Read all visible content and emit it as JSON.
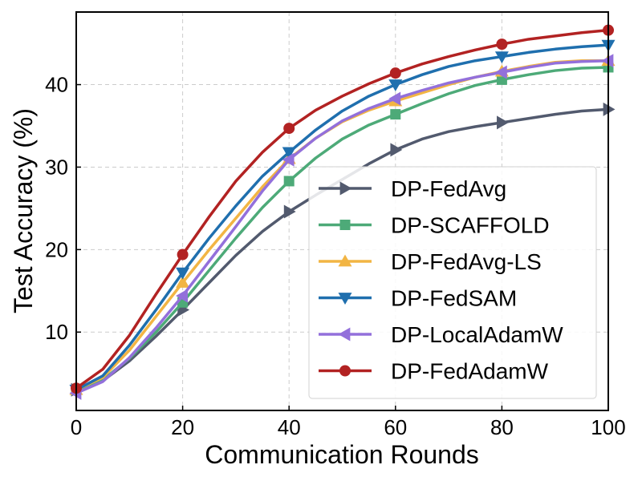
{
  "chart_data": {
    "type": "line",
    "title": "",
    "xlabel": "Communication Rounds",
    "ylabel": "Test Accuracy (%)",
    "xlim": [
      0,
      100
    ],
    "ylim": [
      0.5,
      48.8
    ],
    "xticks": [
      0,
      20,
      40,
      60,
      80,
      100
    ],
    "xtick_labels": [
      "0",
      "20",
      "40",
      "60",
      "80",
      "100"
    ],
    "yticks": [
      10,
      20,
      30,
      40
    ],
    "ytick_labels": [
      "10",
      "20",
      "30",
      "40"
    ],
    "grid": true,
    "legend_position": "lower-right",
    "x": [
      0,
      5,
      10,
      15,
      20,
      25,
      30,
      35,
      40,
      45,
      50,
      55,
      60,
      65,
      70,
      75,
      80,
      85,
      90,
      95,
      100
    ],
    "marker_x": [
      0,
      20,
      40,
      60,
      80,
      100
    ],
    "series": [
      {
        "name": "DP-FedAvg",
        "color": "#525a6e",
        "marker": "triangle-right",
        "values": [
          3.0,
          4.1,
          6.5,
          9.5,
          12.7,
          16.0,
          19.3,
          22.2,
          24.6,
          26.6,
          28.5,
          30.4,
          32.1,
          33.4,
          34.3,
          34.9,
          35.4,
          35.9,
          36.4,
          36.8,
          37.0
        ]
      },
      {
        "name": "DP-SCAFFOLD",
        "color": "#4daa78",
        "marker": "square",
        "values": [
          3.0,
          4.2,
          6.8,
          10.0,
          13.6,
          17.5,
          21.4,
          25.1,
          28.3,
          31.1,
          33.4,
          35.1,
          36.4,
          37.7,
          38.9,
          39.9,
          40.6,
          41.2,
          41.7,
          42.0,
          42.1
        ]
      },
      {
        "name": "DP-FedAvg-LS",
        "color": "#f2b544",
        "marker": "triangle-up",
        "values": [
          3.0,
          4.5,
          7.8,
          11.9,
          16.0,
          20.0,
          23.8,
          27.6,
          31.0,
          33.5,
          35.5,
          36.9,
          38.0,
          39.0,
          40.0,
          40.9,
          41.6,
          42.2,
          42.7,
          42.9,
          42.9
        ]
      },
      {
        "name": "DP-FedSAM",
        "color": "#1f6fae",
        "marker": "triangle-down",
        "values": [
          3.0,
          4.7,
          8.4,
          12.7,
          17.2,
          21.4,
          25.3,
          28.9,
          31.8,
          34.5,
          36.8,
          38.6,
          40.0,
          41.2,
          42.2,
          42.9,
          43.4,
          43.9,
          44.3,
          44.6,
          44.8
        ]
      },
      {
        "name": "DP-LocalAdamW",
        "color": "#9370db",
        "marker": "triangle-left",
        "values": [
          2.6,
          4.0,
          6.9,
          10.5,
          14.4,
          18.6,
          22.8,
          27.1,
          30.9,
          33.5,
          35.6,
          37.1,
          38.3,
          39.3,
          40.2,
          40.9,
          41.5,
          42.1,
          42.6,
          42.8,
          42.9
        ]
      },
      {
        "name": "DP-FedAdamW",
        "color": "#b22222",
        "marker": "circle",
        "values": [
          3.2,
          5.5,
          9.6,
          14.6,
          19.4,
          24.0,
          28.3,
          31.8,
          34.7,
          36.9,
          38.6,
          40.1,
          41.4,
          42.5,
          43.4,
          44.2,
          44.9,
          45.5,
          45.9,
          46.3,
          46.6
        ]
      }
    ]
  }
}
